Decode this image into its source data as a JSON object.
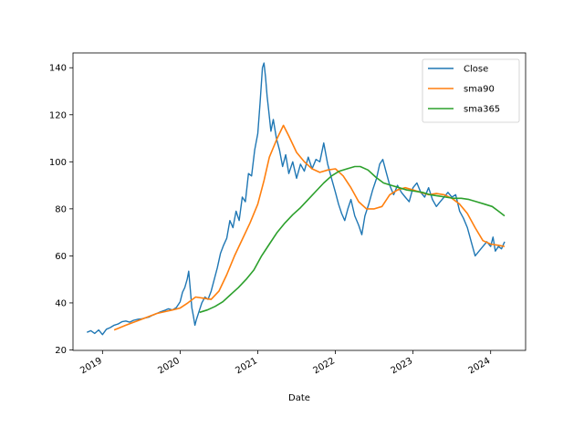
{
  "chart_data": {
    "type": "line",
    "title": "",
    "xlabel": "Date",
    "ylabel": "",
    "x_tick_labels": [
      "2019",
      "2020",
      "2021",
      "2022",
      "2023",
      "2024"
    ],
    "y_tick_labels": [
      "20",
      "40",
      "60",
      "80",
      "100",
      "120",
      "140"
    ],
    "xlim": [
      2018.62,
      2024.45
    ],
    "ylim": [
      19.8,
      146.3
    ],
    "grid": false,
    "legend_placement": "top-right",
    "series": [
      {
        "name": "Close",
        "color": "#1f77b4",
        "points": [
          [
            2018.8,
            27.5
          ],
          [
            2018.85,
            28.2
          ],
          [
            2018.9,
            27.0
          ],
          [
            2018.95,
            28.5
          ],
          [
            2019.0,
            26.5
          ],
          [
            2019.05,
            28.8
          ],
          [
            2019.1,
            29.5
          ],
          [
            2019.15,
            30.5
          ],
          [
            2019.2,
            31.0
          ],
          [
            2019.25,
            32.0
          ],
          [
            2019.3,
            32.3
          ],
          [
            2019.35,
            31.8
          ],
          [
            2019.4,
            32.6
          ],
          [
            2019.45,
            33.0
          ],
          [
            2019.5,
            33.2
          ],
          [
            2019.55,
            33.6
          ],
          [
            2019.6,
            34.0
          ],
          [
            2019.65,
            34.8
          ],
          [
            2019.7,
            35.5
          ],
          [
            2019.75,
            36.2
          ],
          [
            2019.8,
            36.8
          ],
          [
            2019.85,
            37.5
          ],
          [
            2019.9,
            37.0
          ],
          [
            2019.95,
            38.0
          ],
          [
            2020.0,
            40.5
          ],
          [
            2020.03,
            44.5
          ],
          [
            2020.06,
            46.5
          ],
          [
            2020.09,
            50.0
          ],
          [
            2020.11,
            53.5
          ],
          [
            2020.13,
            46.0
          ],
          [
            2020.15,
            38.0
          ],
          [
            2020.17,
            34.5
          ],
          [
            2020.19,
            30.5
          ],
          [
            2020.21,
            33.0
          ],
          [
            2020.24,
            36.0
          ],
          [
            2020.28,
            40.0
          ],
          [
            2020.32,
            42.5
          ],
          [
            2020.36,
            41.5
          ],
          [
            2020.4,
            45.0
          ],
          [
            2020.44,
            50.0
          ],
          [
            2020.48,
            55.0
          ],
          [
            2020.52,
            61.0
          ],
          [
            2020.56,
            64.5
          ],
          [
            2020.6,
            67.5
          ],
          [
            2020.64,
            75.0
          ],
          [
            2020.68,
            72.0
          ],
          [
            2020.72,
            79.0
          ],
          [
            2020.76,
            75.0
          ],
          [
            2020.8,
            85.0
          ],
          [
            2020.84,
            83.0
          ],
          [
            2020.88,
            95.0
          ],
          [
            2020.92,
            94.0
          ],
          [
            2020.96,
            105.0
          ],
          [
            2021.0,
            112.0
          ],
          [
            2021.03,
            125.0
          ],
          [
            2021.06,
            140.0
          ],
          [
            2021.08,
            142.0
          ],
          [
            2021.1,
            136.0
          ],
          [
            2021.12,
            128.0
          ],
          [
            2021.14,
            122.0
          ],
          [
            2021.17,
            113.0
          ],
          [
            2021.2,
            118.0
          ],
          [
            2021.24,
            110.0
          ],
          [
            2021.28,
            105.0
          ],
          [
            2021.32,
            98.0
          ],
          [
            2021.36,
            103.0
          ],
          [
            2021.4,
            95.0
          ],
          [
            2021.45,
            100.0
          ],
          [
            2021.5,
            93.0
          ],
          [
            2021.55,
            99.0
          ],
          [
            2021.6,
            96.0
          ],
          [
            2021.65,
            102.0
          ],
          [
            2021.7,
            97.0
          ],
          [
            2021.75,
            101.0
          ],
          [
            2021.8,
            100.0
          ],
          [
            2021.85,
            108.0
          ],
          [
            2021.9,
            99.0
          ],
          [
            2021.95,
            93.0
          ],
          [
            2022.0,
            87.0
          ],
          [
            2022.04,
            82.0
          ],
          [
            2022.08,
            78.0
          ],
          [
            2022.12,
            75.0
          ],
          [
            2022.16,
            80.0
          ],
          [
            2022.2,
            84.0
          ],
          [
            2022.25,
            77.0
          ],
          [
            2022.3,
            73.0
          ],
          [
            2022.34,
            69.0
          ],
          [
            2022.38,
            77.0
          ],
          [
            2022.43,
            82.0
          ],
          [
            2022.48,
            88.0
          ],
          [
            2022.53,
            93.0
          ],
          [
            2022.57,
            99.0
          ],
          [
            2022.61,
            101.0
          ],
          [
            2022.65,
            96.0
          ],
          [
            2022.7,
            90.0
          ],
          [
            2022.75,
            86.0
          ],
          [
            2022.8,
            90.0
          ],
          [
            2022.85,
            87.0
          ],
          [
            2022.9,
            85.0
          ],
          [
            2022.95,
            83.0
          ],
          [
            2023.0,
            89.0
          ],
          [
            2023.05,
            91.0
          ],
          [
            2023.1,
            87.0
          ],
          [
            2023.15,
            85.0
          ],
          [
            2023.2,
            89.0
          ],
          [
            2023.25,
            84.0
          ],
          [
            2023.3,
            81.0
          ],
          [
            2023.35,
            83.0
          ],
          [
            2023.4,
            85.0
          ],
          [
            2023.45,
            87.0
          ],
          [
            2023.5,
            85.0
          ],
          [
            2023.55,
            86.0
          ],
          [
            2023.6,
            79.0
          ],
          [
            2023.65,
            76.0
          ],
          [
            2023.7,
            72.0
          ],
          [
            2023.75,
            66.0
          ],
          [
            2023.8,
            60.0
          ],
          [
            2023.85,
            62.0
          ],
          [
            2023.9,
            64.0
          ],
          [
            2023.95,
            66.0
          ],
          [
            2024.0,
            64.0
          ],
          [
            2024.03,
            68.0
          ],
          [
            2024.06,
            62.0
          ],
          [
            2024.1,
            64.0
          ],
          [
            2024.14,
            63.0
          ],
          [
            2024.18,
            66.0
          ]
        ]
      },
      {
        "name": "sma90",
        "color": "#ff7f0e",
        "points": [
          [
            2019.15,
            28.5
          ],
          [
            2019.3,
            30.5
          ],
          [
            2019.5,
            33.0
          ],
          [
            2019.7,
            35.5
          ],
          [
            2019.9,
            37.0
          ],
          [
            2020.0,
            37.8
          ],
          [
            2020.1,
            40.0
          ],
          [
            2020.2,
            42.5
          ],
          [
            2020.3,
            42.0
          ],
          [
            2020.4,
            41.5
          ],
          [
            2020.5,
            45.0
          ],
          [
            2020.6,
            52.0
          ],
          [
            2020.7,
            60.0
          ],
          [
            2020.8,
            67.0
          ],
          [
            2020.9,
            74.0
          ],
          [
            2021.0,
            82.0
          ],
          [
            2021.08,
            92.0
          ],
          [
            2021.15,
            102.0
          ],
          [
            2021.25,
            110.0
          ],
          [
            2021.33,
            115.5
          ],
          [
            2021.4,
            111.0
          ],
          [
            2021.5,
            104.0
          ],
          [
            2021.6,
            100.0
          ],
          [
            2021.7,
            97.0
          ],
          [
            2021.8,
            95.5
          ],
          [
            2021.9,
            96.5
          ],
          [
            2022.0,
            97.0
          ],
          [
            2022.1,
            94.0
          ],
          [
            2022.2,
            89.0
          ],
          [
            2022.3,
            83.0
          ],
          [
            2022.4,
            80.0
          ],
          [
            2022.5,
            80.0
          ],
          [
            2022.6,
            81.0
          ],
          [
            2022.7,
            86.0
          ],
          [
            2022.8,
            88.0
          ],
          [
            2022.9,
            89.0
          ],
          [
            2023.0,
            88.0
          ],
          [
            2023.1,
            87.0
          ],
          [
            2023.2,
            86.0
          ],
          [
            2023.3,
            86.5
          ],
          [
            2023.4,
            86.0
          ],
          [
            2023.5,
            84.5
          ],
          [
            2023.6,
            82.0
          ],
          [
            2023.7,
            78.0
          ],
          [
            2023.8,
            72.0
          ],
          [
            2023.9,
            66.5
          ],
          [
            2024.0,
            65.0
          ],
          [
            2024.1,
            64.5
          ],
          [
            2024.18,
            64.0
          ]
        ]
      },
      {
        "name": "sma365",
        "color": "#2ca02c",
        "points": [
          [
            2020.25,
            36.0
          ],
          [
            2020.35,
            37.0
          ],
          [
            2020.45,
            38.5
          ],
          [
            2020.55,
            40.5
          ],
          [
            2020.65,
            43.5
          ],
          [
            2020.75,
            46.5
          ],
          [
            2020.85,
            50.0
          ],
          [
            2020.95,
            54.0
          ],
          [
            2021.05,
            60.0
          ],
          [
            2021.15,
            65.0
          ],
          [
            2021.25,
            70.0
          ],
          [
            2021.35,
            74.0
          ],
          [
            2021.45,
            77.5
          ],
          [
            2021.55,
            80.5
          ],
          [
            2021.65,
            84.0
          ],
          [
            2021.75,
            87.5
          ],
          [
            2021.85,
            91.0
          ],
          [
            2021.95,
            94.0
          ],
          [
            2022.05,
            96.0
          ],
          [
            2022.15,
            97.0
          ],
          [
            2022.25,
            98.0
          ],
          [
            2022.32,
            98.0
          ],
          [
            2022.42,
            96.5
          ],
          [
            2022.52,
            93.5
          ],
          [
            2022.62,
            91.0
          ],
          [
            2022.72,
            90.0
          ],
          [
            2022.82,
            89.0
          ],
          [
            2022.92,
            88.0
          ],
          [
            2023.02,
            87.5
          ],
          [
            2023.12,
            87.0
          ],
          [
            2023.22,
            86.0
          ],
          [
            2023.32,
            85.5
          ],
          [
            2023.42,
            85.0
          ],
          [
            2023.52,
            84.5
          ],
          [
            2023.62,
            84.5
          ],
          [
            2023.72,
            84.0
          ],
          [
            2023.82,
            83.0
          ],
          [
            2023.92,
            82.0
          ],
          [
            2024.02,
            81.0
          ],
          [
            2024.1,
            79.0
          ],
          [
            2024.18,
            77.0
          ]
        ]
      }
    ]
  }
}
